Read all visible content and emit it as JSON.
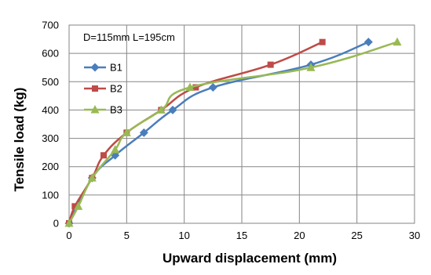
{
  "chart_data": {
    "type": "line",
    "annotation": "D=115mm  L=195cm",
    "xlabel": "Upward displacement (mm)",
    "ylabel": "Tensile load (kg)",
    "xlim": [
      0,
      30
    ],
    "ylim": [
      0,
      700
    ],
    "xticks": [
      "0",
      "5",
      "10",
      "15",
      "20",
      "25",
      "30"
    ],
    "yticks": [
      "0",
      "100",
      "200",
      "300",
      "400",
      "500",
      "600",
      "700"
    ],
    "grid": "vertical and horizontal gridlines",
    "legend_position": "upper-left",
    "series": [
      {
        "name": "B1",
        "color": "#4a7ebb",
        "marker": "diamond",
        "points": [
          [
            0,
            0
          ],
          [
            2,
            160
          ],
          [
            4,
            240
          ],
          [
            6.5,
            320
          ],
          [
            9,
            400
          ],
          [
            12.5,
            480
          ],
          [
            21,
            560
          ],
          [
            26,
            640
          ]
        ]
      },
      {
        "name": "B2",
        "color": "#be4b48",
        "marker": "square",
        "points": [
          [
            0,
            0
          ],
          [
            0.5,
            60
          ],
          [
            2,
            160
          ],
          [
            3,
            240
          ],
          [
            5,
            320
          ],
          [
            8,
            400
          ],
          [
            11,
            480
          ],
          [
            17.5,
            560
          ],
          [
            22,
            640
          ]
        ]
      },
      {
        "name": "B3",
        "color": "#98b954",
        "marker": "triangle",
        "points": [
          [
            0,
            0
          ],
          [
            0.8,
            60
          ],
          [
            2,
            160
          ],
          [
            4,
            260
          ],
          [
            5,
            320
          ],
          [
            8,
            400
          ],
          [
            10.5,
            480
          ],
          [
            21,
            550
          ],
          [
            28.5,
            640
          ]
        ]
      }
    ]
  }
}
